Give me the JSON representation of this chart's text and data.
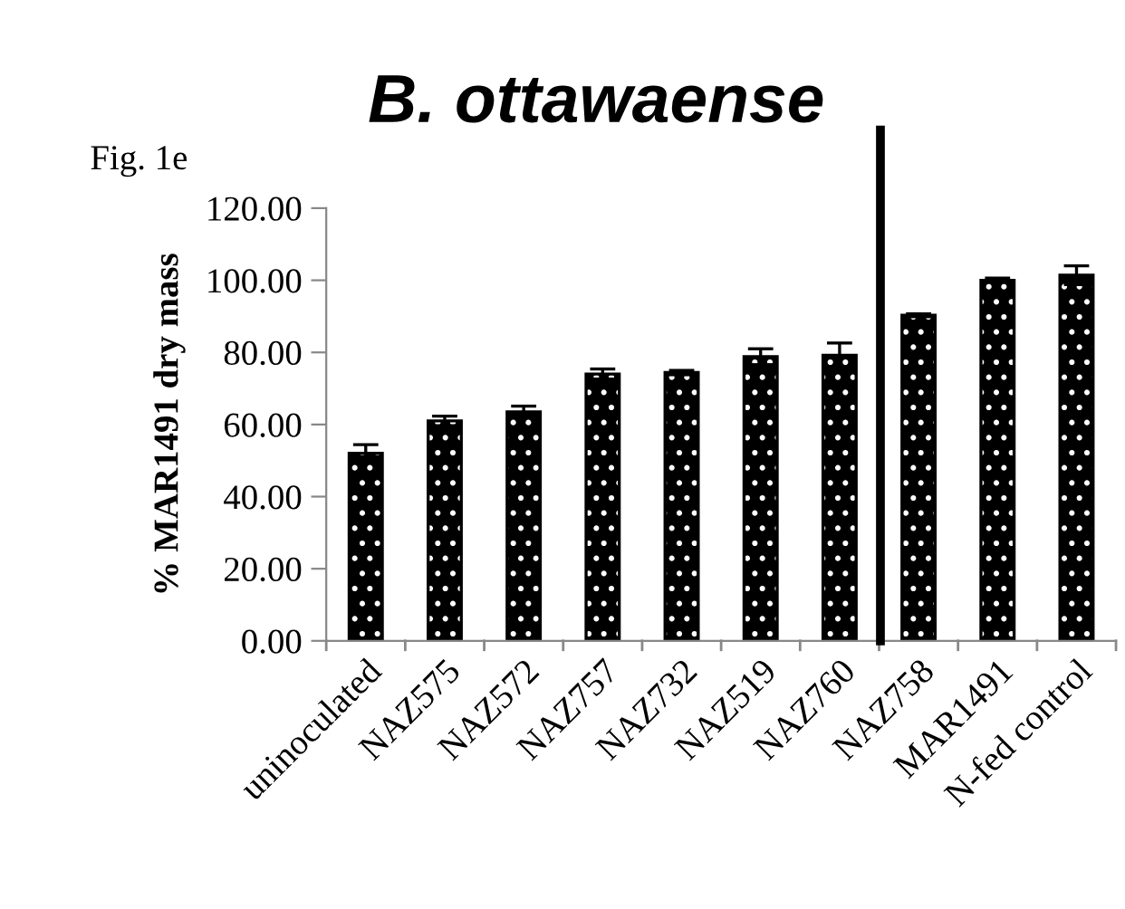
{
  "chart_data": {
    "type": "bar",
    "title": "B. ottawaense",
    "ylabel": "% MAR1491 dry mass",
    "annotations": [
      "Fig. 1e"
    ],
    "categories": [
      "uninoculated",
      "NAZ575",
      "NAZ572",
      "NAZ757",
      "NAZ732",
      "NAZ519",
      "NAZ760",
      "NAZ758",
      "MAR1491",
      "N-fed control"
    ],
    "values": [
      52,
      61,
      63.5,
      74,
      74.4,
      78.8,
      79.2,
      90.3,
      100,
      101.4
    ],
    "errors": [
      2.4,
      1.3,
      1.6,
      1.4,
      0.6,
      2.2,
      3.4,
      0.4,
      0.6,
      2.6
    ],
    "color": "#000000",
    "ylim": [
      0,
      120
    ],
    "yticks": [
      {
        "value": 0,
        "label": "0.00"
      },
      {
        "value": 20,
        "label": "20.00"
      },
      {
        "value": 40,
        "label": "40.00"
      },
      {
        "value": 60,
        "label": "60.00"
      },
      {
        "value": 80,
        "label": "80.00"
      },
      {
        "value": 100,
        "label": "100.00"
      },
      {
        "value": 120,
        "label": "120.00"
      }
    ],
    "grid": false,
    "legend": false
  }
}
